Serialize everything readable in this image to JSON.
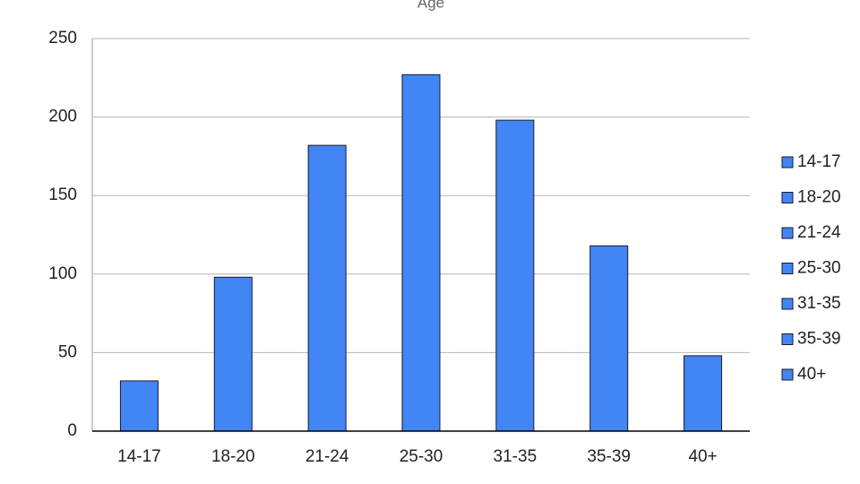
{
  "chart_data": {
    "type": "bar",
    "title": "Age",
    "categories": [
      "14-17",
      "18-20",
      "21-24",
      "25-30",
      "31-35",
      "35-39",
      "40+"
    ],
    "values": [
      32,
      98,
      182,
      227,
      198,
      118,
      48
    ],
    "color": "#4285f4",
    "ylim": [
      0,
      250
    ],
    "yticks": [
      0,
      50,
      100,
      150,
      200,
      250
    ],
    "grid": true,
    "legend": "right"
  }
}
